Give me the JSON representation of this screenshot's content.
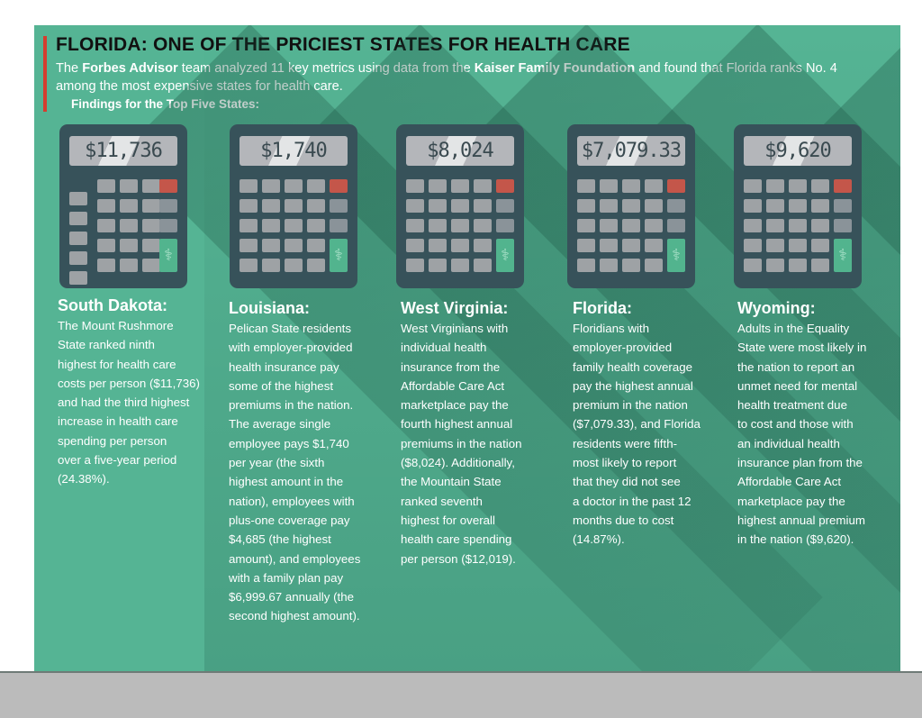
{
  "header": {
    "title": "FLORIDA: ONE OF THE PRICIEST STATES FOR HEALTH CARE",
    "intro": {
      "t1": "The ",
      "b1": "Forbes Advisor",
      "t2": " team analyzed 11 key metrics using data from the ",
      "b2": "Kaiser Family Foundation",
      "t3": " and found that Florida ranks No. 4 among the most expensive states for health care."
    },
    "findings": "Findings for the Top Five States:"
  },
  "colors": {
    "background": "#55b494",
    "calculator": "#37525a",
    "accent_red": "#d63d2e",
    "key_green": "#52b48e"
  },
  "states": [
    {
      "name": "South Dakota:",
      "display": "$11,736",
      "lines": [
        "The Mount Rushmore",
        "State ranked ninth",
        "highest for health care",
        "costs per person ($11,736)",
        "and had the third highest",
        "increase in health care",
        "spending per person",
        "over a five-year period",
        "(24.38%)."
      ]
    },
    {
      "name": "Louisiana:",
      "display": "$1,740",
      "lines": [
        "Pelican State residents",
        "with employer-provided",
        "health insurance pay",
        "some of the highest",
        "premiums in the nation.",
        "The average single",
        "employee pays $1,740",
        "per year (the sixth",
        "highest amount in the",
        "nation), employees with",
        "plus-one coverage pay",
        "$4,685 (the highest",
        "amount), and employees",
        "with a family plan pay",
        "$6,999.67 annually (the",
        "second highest amount)."
      ]
    },
    {
      "name": "West Virginia:",
      "display": "$8,024",
      "lines": [
        "West Virginians with",
        "individual health",
        "insurance from the",
        "Affordable Care Act",
        "marketplace pay the",
        "fourth highest annual",
        "premiums in the nation",
        "($8,024). Additionally,",
        "the Mountain State",
        "ranked seventh",
        "highest for overall",
        "health care spending",
        "per person ($12,019)."
      ]
    },
    {
      "name": "Florida:",
      "display": "$7,079.33",
      "lines": [
        "Floridians with",
        "employer-provided",
        "family health coverage",
        "pay the highest annual",
        "premium in the nation",
        "($7,079.33), and Florida",
        "residents were fifth-",
        "most likely to report",
        "that they did not see",
        "a doctor in the past 12",
        "months due to cost",
        "(14.87%)."
      ]
    },
    {
      "name": "Wyoming:",
      "display": "$9,620",
      "lines": [
        "Adults in the Equality",
        "State were most likely in",
        "the nation to report an",
        "unmet need for mental",
        "health treatment due",
        "to cost and those with",
        "an individual health",
        "insurance plan from the",
        "Affordable Care Act",
        "marketplace pay the",
        "highest annual premium",
        "in the nation ($9,620)."
      ]
    }
  ]
}
